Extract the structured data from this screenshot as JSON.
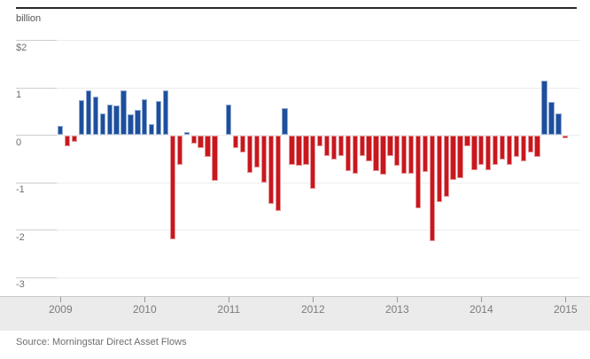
{
  "header": {
    "unit_label": "billion"
  },
  "footer": {
    "source": "Source: Morningstar Direct Asset Flows"
  },
  "colors": {
    "positive": "#1d4f9c",
    "positive_border": "#8ea9d2",
    "negative": "#c9171e",
    "negative_border": "#e4989b",
    "gridline": "#ececec",
    "grid_stub": "#cdcdcd",
    "axis_band": "#ebebeb",
    "axis_tick": "#999999",
    "axis_text": "#7b7b7b",
    "top_rule": "#282828"
  },
  "chart_data": {
    "type": "bar",
    "title": "billion",
    "xlabel": "",
    "ylabel": "billion",
    "ylim": [
      -3,
      2
    ],
    "grid": true,
    "legend": "none",
    "y_ticks": {
      "labels": [
        "$2",
        "1",
        "0",
        "-1",
        "-2",
        "-3"
      ],
      "values": [
        2,
        1,
        0,
        -1,
        -2,
        -3
      ]
    },
    "x_year_labels": [
      "2009",
      "2010",
      "2011",
      "2012",
      "2013",
      "2014",
      "2015"
    ],
    "start_month": "2009-01",
    "months_per_year_note": "values listed Jan-Dec per year; zero value renders as no bar",
    "series_by_year": {
      "2009": [
        0.19,
        -0.23,
        -0.14,
        0.73,
        0.95,
        0.82,
        0.46,
        0.64,
        0.62,
        0.95,
        0.43,
        0.54
      ],
      "2010": [
        0.76,
        0.23,
        0.72,
        0.95,
        -2.2,
        -0.62,
        0.06,
        -0.17,
        -0.28,
        -0.45,
        -0.97,
        0.0
      ],
      "2011": [
        0.64,
        -0.27,
        -0.36,
        -0.8,
        -0.69,
        -1.0,
        -1.44,
        -1.6,
        0.57,
        -0.62,
        -0.65,
        -0.63
      ],
      "2012": [
        -1.14,
        -0.23,
        -0.43,
        -0.52,
        -0.43,
        -0.76,
        -0.81,
        -0.43,
        -0.56,
        -0.76,
        -0.84,
        -0.43
      ],
      "2013": [
        -0.65,
        -0.81,
        -0.81,
        -1.55,
        -0.78,
        -2.23,
        -1.41,
        -1.3,
        -0.95,
        -0.91,
        -0.23,
        -0.73
      ],
      "2014": [
        -0.62,
        -0.73,
        -0.62,
        -0.52,
        -0.62,
        -0.46,
        -0.55,
        -0.36,
        -0.46,
        1.15,
        0.7,
        0.46
      ],
      "2015": [
        -0.06
      ]
    },
    "source": "Source: Morningstar Direct Asset Flows"
  }
}
